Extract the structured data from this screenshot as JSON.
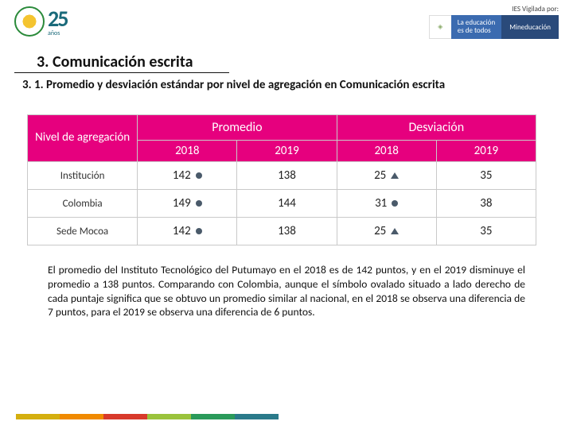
{
  "header": {
    "logo_number": "25",
    "logo_subtext": "años",
    "vigilada_label": "IES Vigilada por:",
    "gov_line1": "La educación",
    "gov_line2": "es de todos",
    "gov_ministry": "Mineducación"
  },
  "section": {
    "title": "3. Comunicación escrita",
    "subtitle": "3. 1. Promedio y desviación estándar por nivel de agregación en Comunicación escrita"
  },
  "table": {
    "header_colors": {
      "bg": "#e6007e",
      "text": "#ffffff"
    },
    "border_color": "#c9c9c9",
    "level_header": "Nivel de agregación",
    "group_headers": [
      "Promedio",
      "Desviación"
    ],
    "years": [
      "2018",
      "2019"
    ],
    "rows": [
      {
        "label": "Institución",
        "promedio": [
          "142",
          "138"
        ],
        "desv": [
          "25",
          "35"
        ],
        "sym_p": [
          "oval",
          ""
        ],
        "sym_d": [
          "tri",
          ""
        ]
      },
      {
        "label": "Colombia",
        "promedio": [
          "149",
          "144"
        ],
        "desv": [
          "31",
          "38"
        ],
        "sym_p": [
          "oval",
          ""
        ],
        "sym_d": [
          "oval",
          ""
        ]
      },
      {
        "label": "Sede Mocoa",
        "promedio": [
          "142",
          "138"
        ],
        "desv": [
          "25",
          "35"
        ],
        "sym_p": [
          "oval",
          ""
        ],
        "sym_d": [
          "tri",
          ""
        ]
      }
    ]
  },
  "paragraph": "El promedio del Instituto Tecnológico del Putumayo en el 2018 es de 142 puntos, y en el 2019 disminuye el promedio a 138 puntos. Comparando con Colombia, aunque el símbolo ovalado situado a lado derecho de cada puntaje significa que se obtuvo un promedio similar al nacional, en el 2018 se observa una diferencia de 7 puntos, para el 2019 se observa una diferencia de 6 puntos.",
  "footer_colors": [
    "#d4af0f",
    "#f08a00",
    "#d83a2b",
    "#9ac33c",
    "#2a9a5a",
    "#2a7a8a"
  ]
}
